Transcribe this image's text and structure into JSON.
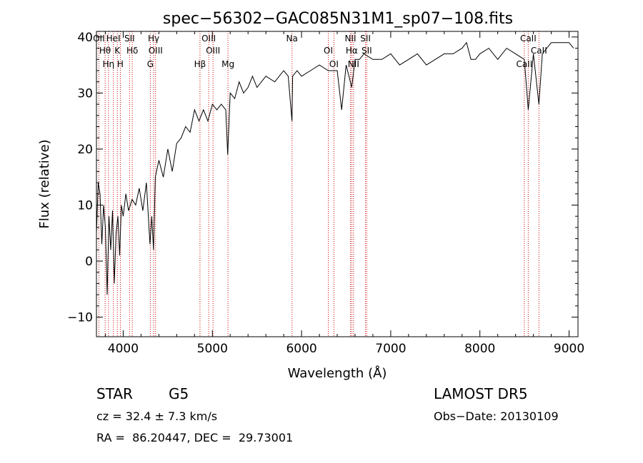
{
  "chart_data": {
    "type": "line",
    "title": "spec−56302−GAC085N31M1_sp07−108.fits",
    "xlabel": "Wavelength (Å)",
    "ylabel": "Flux (relative)",
    "xlim": [
      3700,
      9100
    ],
    "ylim": [
      -13.5,
      41
    ],
    "xticks": [
      4000,
      5000,
      6000,
      7000,
      8000,
      9000
    ],
    "yticks": [
      -10,
      0,
      10,
      20,
      30,
      40
    ],
    "grid": false,
    "series": [
      {
        "x": [
          3700,
          3720,
          3740,
          3760,
          3780,
          3800,
          3820,
          3840,
          3860,
          3880,
          3900,
          3920,
          3940,
          3960,
          3980,
          4000,
          4030,
          4060,
          4100,
          4140,
          4180,
          4220,
          4260,
          4300,
          4320,
          4340,
          4360,
          4400,
          4450,
          4500,
          4550,
          4600,
          4650,
          4700,
          4750,
          4800,
          4850,
          4900,
          4950,
          5000,
          5050,
          5100,
          5150,
          5172,
          5200,
          5250,
          5300,
          5350,
          5400,
          5450,
          5500,
          5600,
          5700,
          5800,
          5850,
          5893,
          5900,
          5950,
          6000,
          6100,
          6200,
          6300,
          6400,
          6450,
          6500,
          6563,
          6600,
          6650,
          6700,
          6800,
          6900,
          7000,
          7100,
          7200,
          7300,
          7400,
          7500,
          7600,
          7700,
          7800,
          7850,
          7900,
          7950,
          8000,
          8100,
          8200,
          8300,
          8400,
          8498,
          8542,
          8600,
          8662,
          8700,
          8800,
          8900,
          9000,
          9050
        ],
        "y": [
          5,
          14,
          12,
          3,
          10,
          6,
          -6,
          8,
          2,
          9,
          -4,
          5,
          8,
          1,
          10,
          8,
          12,
          9,
          11,
          10,
          13,
          9,
          14,
          3,
          8,
          2,
          15,
          18,
          15,
          20,
          16,
          21,
          22,
          24,
          23,
          27,
          25,
          27,
          25,
          28,
          27,
          28,
          27,
          19,
          30,
          29,
          32,
          30,
          31,
          33,
          31,
          33,
          32,
          34,
          33,
          25,
          33,
          34,
          33,
          34,
          35,
          34,
          34,
          27,
          35,
          31,
          36,
          36,
          37,
          36,
          36,
          37,
          35,
          36,
          37,
          35,
          36,
          37,
          37,
          38,
          39,
          36,
          36,
          37,
          38,
          36,
          38,
          37,
          36,
          27,
          37,
          28,
          37,
          39,
          39,
          39,
          38
        ]
      }
    ],
    "spectral_lines": [
      {
        "label": "OII",
        "x": 3727
      },
      {
        "label": "Hθ",
        "x": 3797
      },
      {
        "label": "Hη",
        "x": 3835
      },
      {
        "label": "HeI",
        "x": 3889
      },
      {
        "label": "K",
        "x": 3934
      },
      {
        "label": "H",
        "x": 3968
      },
      {
        "label": "SII",
        "x": 4071
      },
      {
        "label": "Hδ",
        "x": 4102
      },
      {
        "label": "G",
        "x": 4304
      },
      {
        "label": "Hγ",
        "x": 4341
      },
      {
        "label": "OIII",
        "x": 4363
      },
      {
        "label": "Hβ",
        "x": 4861
      },
      {
        "label": "OIII",
        "x": 4959
      },
      {
        "label": "OIII",
        "x": 5007
      },
      {
        "label": "Mg",
        "x": 5175
      },
      {
        "label": "Na",
        "x": 5893
      },
      {
        "label": "OI",
        "x": 6300
      },
      {
        "label": "OI",
        "x": 6363
      },
      {
        "label": "NII",
        "x": 6548
      },
      {
        "label": "Hα",
        "x": 6563
      },
      {
        "label": "NII",
        "x": 6583
      },
      {
        "label": "SII",
        "x": 6717
      },
      {
        "label": "SII",
        "x": 6731
      },
      {
        "label": "CaII",
        "x": 8498
      },
      {
        "label": "CaII",
        "x": 8542
      },
      {
        "label": "CaII",
        "x": 8662
      }
    ]
  },
  "info": {
    "class": "STAR",
    "subclass": "G5",
    "survey": "LAMOST DR5",
    "cz": "cz = 32.4 ± 7.3 km/s",
    "obs_date": "Obs−Date: 20130109",
    "radec": "RA =  86.20447, DEC =  29.73001"
  },
  "colors": {
    "spectrum": "#000000",
    "lines": "#cc0000",
    "axes": "#000000"
  }
}
